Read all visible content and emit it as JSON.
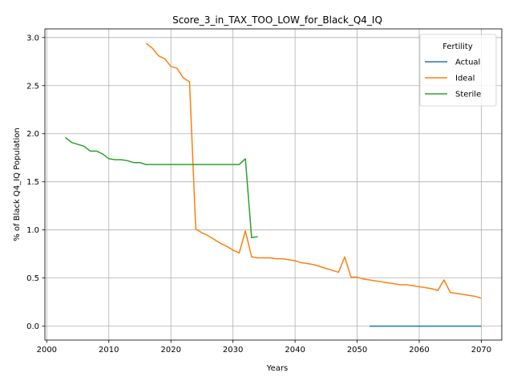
{
  "chart_data": {
    "type": "line",
    "title": "Score_3_in_TAX_TOO_LOW_for_Black_Q4_IQ",
    "xlabel": "Years",
    "ylabel": "% of Black Q4_IQ Population",
    "xlim": [
      1999.7,
      2073.3
    ],
    "ylim": [
      -0.145,
      3.09
    ],
    "xticks": [
      2000,
      2010,
      2020,
      2030,
      2040,
      2050,
      2060,
      2070
    ],
    "yticks": [
      0.0,
      0.5,
      1.0,
      1.5,
      2.0,
      2.5,
      3.0
    ],
    "xtick_labels": [
      "2000",
      "2010",
      "2020",
      "2030",
      "2040",
      "2050",
      "2060",
      "2070"
    ],
    "ytick_labels": [
      "0.0",
      "0.5",
      "1.0",
      "1.5",
      "2.0",
      "2.5",
      "3.0"
    ],
    "grid": true,
    "legend": {
      "title": "Fertility",
      "placement": "top-right"
    },
    "series": [
      {
        "name": "Actual",
        "color": "#1f77b4",
        "x": [
          2052,
          2055,
          2060,
          2065,
          2070
        ],
        "y": [
          0.0,
          0.0,
          0.0,
          0.0,
          0.0
        ]
      },
      {
        "name": "Ideal",
        "color": "#ff7f0e",
        "x": [
          2016,
          2017,
          2018,
          2019,
          2020,
          2021,
          2022,
          2023,
          2024,
          2025,
          2026,
          2027,
          2028,
          2029,
          2030,
          2031,
          2032,
          2033,
          2034,
          2035,
          2036,
          2037,
          2038,
          2039,
          2040,
          2041,
          2042,
          2043,
          2044,
          2045,
          2046,
          2047,
          2048,
          2049,
          2050,
          2051,
          2052,
          2053,
          2054,
          2055,
          2056,
          2057,
          2058,
          2059,
          2060,
          2061,
          2062,
          2063,
          2064,
          2065,
          2066,
          2067,
          2068,
          2069,
          2070
        ],
        "y": [
          2.94,
          2.89,
          2.81,
          2.78,
          2.7,
          2.68,
          2.58,
          2.54,
          1.01,
          0.97,
          0.94,
          0.9,
          0.86,
          0.83,
          0.79,
          0.76,
          0.99,
          0.72,
          0.71,
          0.71,
          0.71,
          0.7,
          0.7,
          0.69,
          0.68,
          0.66,
          0.65,
          0.64,
          0.62,
          0.6,
          0.58,
          0.56,
          0.72,
          0.51,
          0.51,
          0.49,
          0.48,
          0.47,
          0.46,
          0.45,
          0.44,
          0.43,
          0.43,
          0.42,
          0.41,
          0.4,
          0.39,
          0.37,
          0.48,
          0.35,
          0.34,
          0.33,
          0.32,
          0.31,
          0.29
        ]
      },
      {
        "name": "Sterile",
        "color": "#2ca02c",
        "x": [
          2003,
          2004,
          2005,
          2006,
          2007,
          2008,
          2009,
          2010,
          2011,
          2012,
          2013,
          2014,
          2015,
          2016,
          2017,
          2018,
          2019,
          2020,
          2021,
          2022,
          2023,
          2024,
          2025,
          2026,
          2027,
          2028,
          2029,
          2030,
          2031,
          2032,
          2033,
          2034
        ],
        "y": [
          1.96,
          1.91,
          1.89,
          1.87,
          1.82,
          1.82,
          1.79,
          1.74,
          1.73,
          1.73,
          1.72,
          1.7,
          1.7,
          1.68,
          1.68,
          1.68,
          1.68,
          1.68,
          1.68,
          1.68,
          1.68,
          1.68,
          1.68,
          1.68,
          1.68,
          1.68,
          1.68,
          1.68,
          1.68,
          1.74,
          0.92,
          0.93
        ]
      }
    ]
  }
}
